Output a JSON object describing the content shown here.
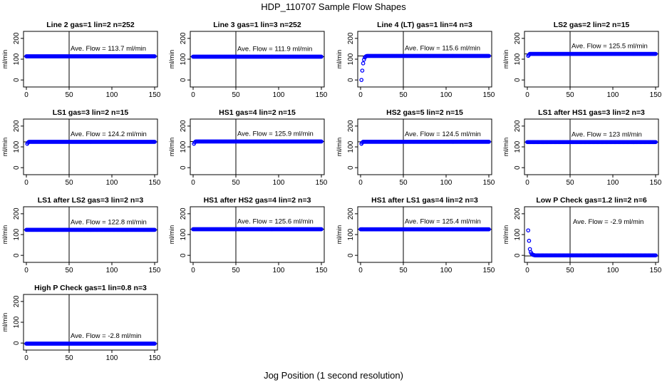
{
  "figure": {
    "title": "HDP_110707  Sample Flow Shapes",
    "xlabel": "Jog Position (1 second resolution)"
  },
  "chart_data": [
    {
      "type": "scatter",
      "title": "Line 2 gas=1 lin=2 n=252",
      "ylabel": "ml/min",
      "annotation": "Ave. Flow =  113.7  ml/min",
      "avg": 113.7,
      "profile": "flat",
      "x": [
        0,
        150
      ],
      "xticks": [
        0,
        50,
        100,
        150
      ],
      "ylim": [
        -20,
        220
      ],
      "yticks": [
        0,
        100,
        200
      ],
      "vline": 50,
      "color": "#0000ff"
    },
    {
      "type": "scatter",
      "title": "Line 3 gas=1 lin=3 n=252",
      "ylabel": "ml/min",
      "annotation": "Ave. Flow =  111.9  ml/min",
      "avg": 111.9,
      "profile": "flat",
      "x": [
        0,
        150
      ],
      "xticks": [
        0,
        50,
        100,
        150
      ],
      "ylim": [
        -20,
        220
      ],
      "yticks": [
        0,
        100,
        200
      ],
      "vline": 50,
      "color": "#0000ff"
    },
    {
      "type": "scatter",
      "title": "Line 4 (LT) gas=1 lin=4 n=3",
      "ylabel": "ml/min",
      "annotation": "Ave. Flow =  115.6  ml/min",
      "avg": 115.6,
      "profile": "rise",
      "x": [
        0,
        150
      ],
      "xticks": [
        0,
        50,
        100,
        150
      ],
      "ylim": [
        -20,
        220
      ],
      "yticks": [
        0,
        100,
        200
      ],
      "vline": 50,
      "color": "#0000ff",
      "early_points": [
        [
          1,
          0
        ],
        [
          2,
          45
        ],
        [
          3,
          80
        ],
        [
          4,
          98
        ],
        [
          5,
          108
        ],
        [
          6,
          113
        ],
        [
          7,
          115
        ]
      ]
    },
    {
      "type": "scatter",
      "title": "LS2 gas=2 lin=2 n=15",
      "ylabel": "ml/min",
      "annotation": "Ave. Flow =  125.5  ml/min",
      "avg": 125.5,
      "profile": "flat_start",
      "x": [
        0,
        150
      ],
      "xticks": [
        0,
        50,
        100,
        150
      ],
      "ylim": [
        -20,
        220
      ],
      "yticks": [
        0,
        100,
        200
      ],
      "vline": 50,
      "color": "#0000ff",
      "early_points": [
        [
          1,
          116
        ],
        [
          2,
          121
        ]
      ]
    },
    {
      "type": "scatter",
      "title": "LS1 gas=3 lin=2 n=15",
      "ylabel": "ml/min",
      "annotation": "Ave. Flow =  124.2  ml/min",
      "avg": 124.2,
      "profile": "flat_start",
      "x": [
        0,
        150
      ],
      "xticks": [
        0,
        50,
        100,
        150
      ],
      "ylim": [
        -20,
        220
      ],
      "yticks": [
        0,
        100,
        200
      ],
      "vline": 50,
      "color": "#0000ff",
      "early_points": [
        [
          1,
          115
        ],
        [
          2,
          121
        ]
      ]
    },
    {
      "type": "scatter",
      "title": "HS1 gas=4 lin=2 n=15",
      "ylabel": "ml/min",
      "annotation": "Ave. Flow =  125.9  ml/min",
      "avg": 125.9,
      "profile": "flat_start",
      "x": [
        0,
        150
      ],
      "xticks": [
        0,
        50,
        100,
        150
      ],
      "ylim": [
        -20,
        220
      ],
      "yticks": [
        0,
        100,
        200
      ],
      "vline": 50,
      "color": "#0000ff",
      "early_points": [
        [
          1,
          115
        ],
        [
          2,
          122
        ]
      ]
    },
    {
      "type": "scatter",
      "title": "HS2 gas=5 lin=2 n=15",
      "ylabel": "ml/min",
      "annotation": "Ave. Flow =  124.5  ml/min",
      "avg": 124.5,
      "profile": "flat_start",
      "x": [
        0,
        150
      ],
      "xticks": [
        0,
        50,
        100,
        150
      ],
      "ylim": [
        -20,
        220
      ],
      "yticks": [
        0,
        100,
        200
      ],
      "vline": 50,
      "color": "#0000ff",
      "early_points": [
        [
          1,
          115
        ],
        [
          2,
          121
        ]
      ]
    },
    {
      "type": "scatter",
      "title": "LS1 after HS1 gas=3 lin=2 n=3",
      "ylabel": "ml/min",
      "annotation": "Ave. Flow =  123  ml/min",
      "avg": 123,
      "profile": "flat",
      "x": [
        0,
        150
      ],
      "xticks": [
        0,
        50,
        100,
        150
      ],
      "ylim": [
        -20,
        220
      ],
      "yticks": [
        0,
        100,
        200
      ],
      "vline": 50,
      "color": "#0000ff"
    },
    {
      "type": "scatter",
      "title": "LS1 after LS2 gas=3 lin=2 n=3",
      "ylabel": "ml/min",
      "annotation": "Ave. Flow =  122.8  ml/min",
      "avg": 122.8,
      "profile": "flat",
      "x": [
        0,
        150
      ],
      "xticks": [
        0,
        50,
        100,
        150
      ],
      "ylim": [
        -20,
        220
      ],
      "yticks": [
        0,
        100,
        200
      ],
      "vline": 50,
      "color": "#0000ff"
    },
    {
      "type": "scatter",
      "title": "HS1 after HS2 gas=4 lin=2 n=3",
      "ylabel": "ml/min",
      "annotation": "Ave. Flow =  125.6  ml/min",
      "avg": 125.6,
      "profile": "flat",
      "x": [
        0,
        150
      ],
      "xticks": [
        0,
        50,
        100,
        150
      ],
      "ylim": [
        -20,
        220
      ],
      "yticks": [
        0,
        100,
        200
      ],
      "vline": 50,
      "color": "#0000ff"
    },
    {
      "type": "scatter",
      "title": "HS1 after LS1 gas=4 lin=2 n=3",
      "ylabel": "ml/min",
      "annotation": "Ave. Flow =  125.4  ml/min",
      "avg": 125.4,
      "profile": "flat",
      "x": [
        0,
        150
      ],
      "xticks": [
        0,
        50,
        100,
        150
      ],
      "ylim": [
        -20,
        220
      ],
      "yticks": [
        0,
        100,
        200
      ],
      "vline": 50,
      "color": "#0000ff"
    },
    {
      "type": "scatter",
      "title": "Low P Check gas=1.2 lin=2 n=6",
      "ylabel": "ml/min",
      "annotation": "Ave. Flow =  -2.9  ml/min",
      "avg": -2.9,
      "profile": "decay",
      "x": [
        0,
        150
      ],
      "xticks": [
        0,
        50,
        100,
        150
      ],
      "ylim": [
        -20,
        220
      ],
      "yticks": [
        0,
        100,
        200
      ],
      "vline": 50,
      "color": "#0000ff",
      "early_points": [
        [
          1,
          120
        ],
        [
          2,
          70
        ],
        [
          3,
          30
        ],
        [
          4,
          15
        ],
        [
          5,
          8
        ],
        [
          6,
          4
        ],
        [
          7,
          2
        ],
        [
          8,
          1
        ],
        [
          9,
          0
        ]
      ]
    },
    {
      "type": "scatter",
      "title": "High P Check gas=1 lin=0.8 n=3",
      "ylabel": "ml/min",
      "annotation": "Ave. Flow =  -2.8  ml/min",
      "avg": -2.8,
      "profile": "flat",
      "x": [
        0,
        150
      ],
      "xticks": [
        0,
        50,
        100,
        150
      ],
      "ylim": [
        -20,
        220
      ],
      "yticks": [
        0,
        100,
        200
      ],
      "vline": 50,
      "color": "#0000ff"
    }
  ]
}
